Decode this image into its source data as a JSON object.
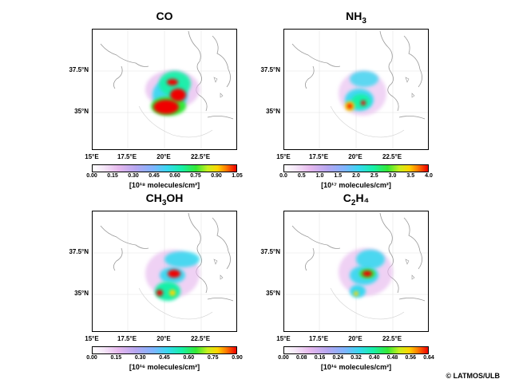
{
  "panels": [
    {
      "title": "CO",
      "title_sub": "",
      "title_post": "",
      "lat_labels": [
        "37.5°N",
        "35°N"
      ],
      "lon_labels": [
        "15°E",
        "17.5°E",
        "20°E",
        "22.5°E"
      ],
      "colorbar_ticks": [
        "0.00",
        "0.15",
        "0.30",
        "0.45",
        "0.60",
        "0.75",
        "0.90",
        "1.05"
      ],
      "unit": "[10¹⁸ molecules/cm²]",
      "colorscale": "rainbow_white_to_red",
      "range": [
        0.0,
        1.05
      ]
    },
    {
      "title": "NH",
      "title_sub": "3",
      "title_post": "",
      "lat_labels": [
        "37.5°N",
        "35°N"
      ],
      "lon_labels": [
        "15°E",
        "17.5°E",
        "20°E",
        "22.5°E"
      ],
      "colorbar_ticks": [
        "0.0",
        "0.5",
        "1.0",
        "1.5",
        "2.0",
        "2.5",
        "3.0",
        "3.5",
        "4.0"
      ],
      "unit": "[10¹⁷ molecules/cm²]",
      "colorscale": "rainbow_white_to_red",
      "range": [
        0.0,
        4.0
      ]
    },
    {
      "title": "CH",
      "title_sub": "3",
      "title_post": "OH",
      "lat_labels": [
        "37.5°N",
        "35°N"
      ],
      "lon_labels": [
        "15°E",
        "17.5°E",
        "20°E",
        "22.5°E"
      ],
      "colorbar_ticks": [
        "0.00",
        "0.15",
        "0.30",
        "0.45",
        "0.60",
        "0.75",
        "0.90"
      ],
      "unit": "[10¹⁶ molecules/cm²]",
      "colorscale": "rainbow_white_to_red",
      "range": [
        0.0,
        0.9
      ]
    },
    {
      "title": "C",
      "title_sub": "2",
      "title_post": "H₄",
      "lat_labels": [
        "37.5°N",
        "35°N"
      ],
      "lon_labels": [
        "15°E",
        "17.5°E",
        "20°E",
        "22.5°E"
      ],
      "colorbar_ticks": [
        "0.00",
        "0.08",
        "0.16",
        "0.24",
        "0.32",
        "0.40",
        "0.48",
        "0.56",
        "0.64"
      ],
      "unit": "[10¹⁶ molecules/cm²]",
      "colorscale": "rainbow_white_to_red",
      "range": [
        0.0,
        0.64
      ]
    }
  ],
  "map_extent": {
    "lon": [
      15.0,
      25.0
    ],
    "lat": [
      32.5,
      40.0
    ]
  },
  "credit": "© LATMOS/ULB"
}
